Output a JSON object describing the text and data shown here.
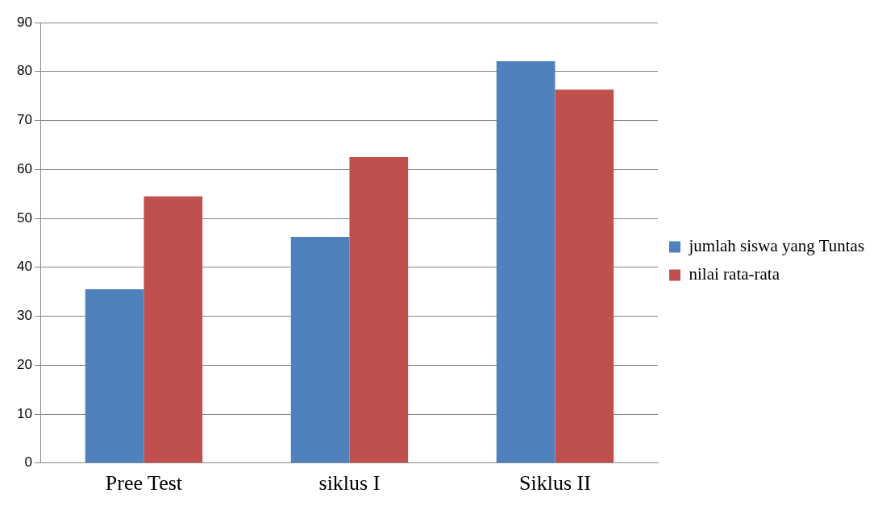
{
  "chart_data": {
    "type": "bar",
    "categories": [
      "Pree Test",
      "siklus I",
      "Siklus II"
    ],
    "series": [
      {
        "name": "jumlah siswa yang Tuntas",
        "color": "#4f81bd",
        "values": [
          35.5,
          46.2,
          82.1
        ]
      },
      {
        "name": "nilai rata-rata",
        "color": "#c0504d",
        "values": [
          54.5,
          62.5,
          76.3
        ]
      }
    ],
    "ylim": [
      0,
      90
    ],
    "yticks": [
      0,
      10,
      20,
      30,
      40,
      50,
      60,
      70,
      80,
      90
    ],
    "grid": "y",
    "legend": "right"
  }
}
